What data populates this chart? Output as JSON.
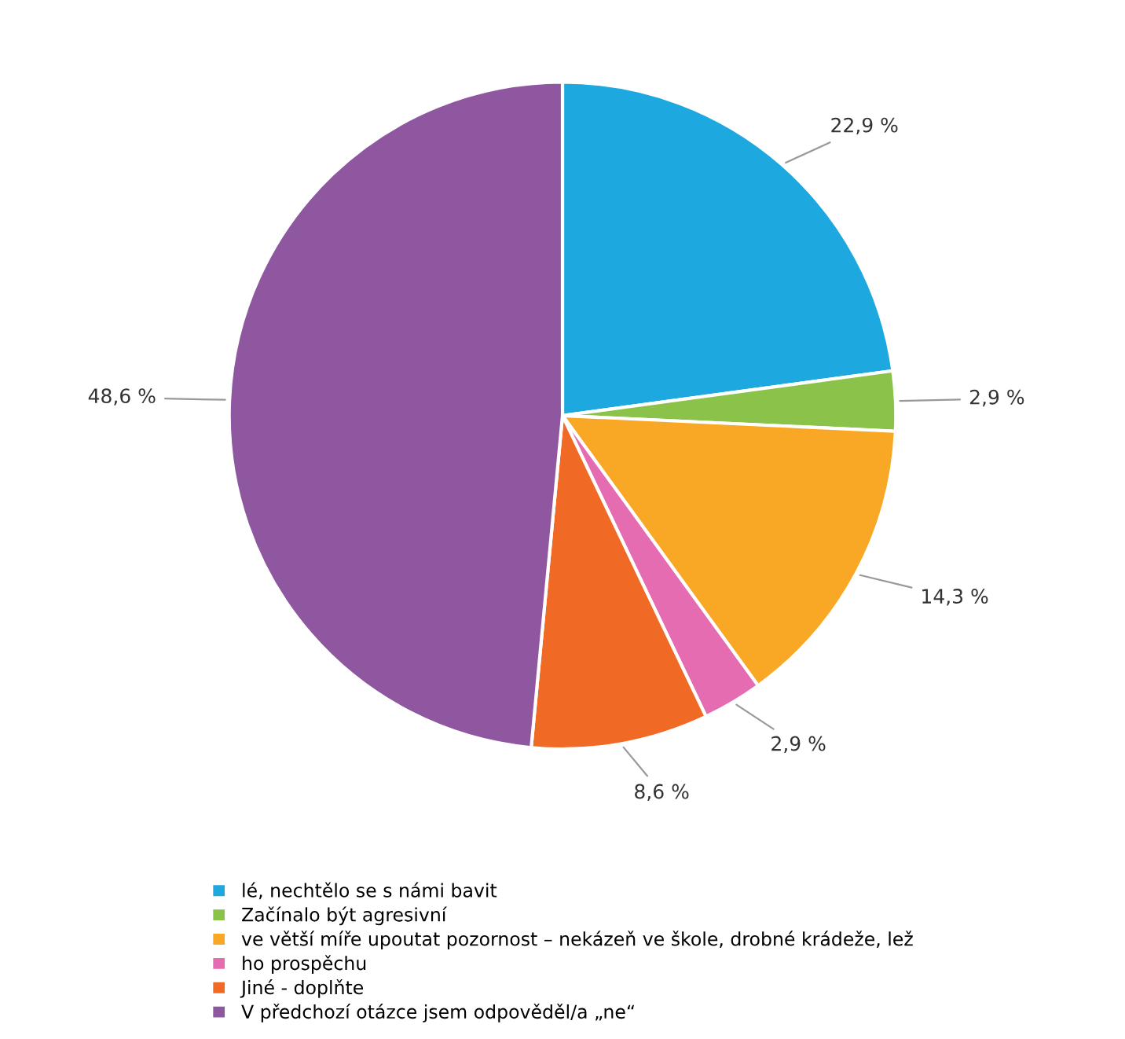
{
  "chart_data": {
    "type": "pie",
    "categories": [
      "lé, nechtělo se s námi bavit",
      "Začínalo být agresivní",
      "ve větší míře upoutat pozornost – nekázeň ve škole, drobné krádeže, lež",
      "ho prospěchu",
      "Jiné - doplňte",
      "V předchozí otázce jsem odpověděl/a „ne“"
    ],
    "values": [
      22.9,
      2.9,
      14.3,
      2.9,
      8.6,
      48.6
    ],
    "colors": [
      "#1ea8e0",
      "#8bc34a",
      "#f9a825",
      "#e56cb0",
      "#f06a25",
      "#8e57a0"
    ],
    "value_labels": [
      "22,9 %",
      "2,9 %",
      "14,3 %",
      "2,9 %",
      "8,6 %",
      "48,6 %"
    ],
    "legend": "bottom"
  }
}
